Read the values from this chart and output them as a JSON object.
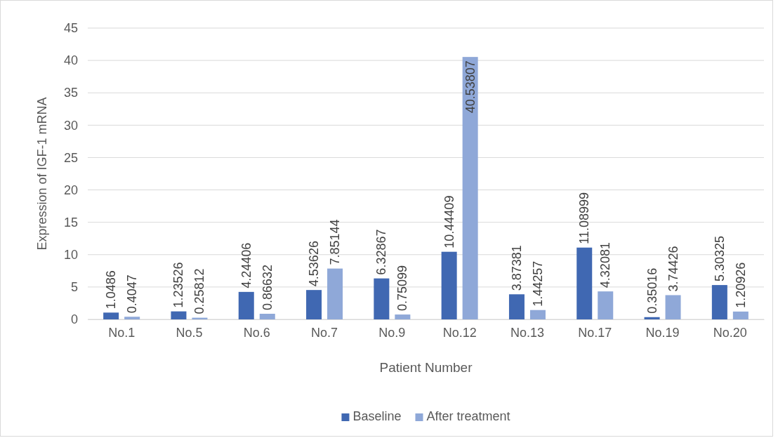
{
  "chart_data": {
    "type": "bar",
    "xlabel": "Patient Number",
    "ylabel": "Expression of IGF-1 mRNA",
    "categories": [
      "No.1",
      "No.5",
      "No.6",
      "No.7",
      "No.9",
      "No.12",
      "No.13",
      "No.17",
      "No.19",
      "No.20"
    ],
    "series": [
      {
        "name": "Baseline",
        "color": "#4068b2",
        "values": [
          1.0486,
          1.23526,
          4.24406,
          4.53626,
          6.32867,
          10.44409,
          3.87381,
          11.08999,
          0.35016,
          5.30325
        ]
      },
      {
        "name": "After treatment",
        "color": "#8fa8d8",
        "values": [
          0.4047,
          0.25812,
          0.86632,
          7.85144,
          0.75099,
          40.53807,
          1.44257,
          4.32081,
          3.74426,
          1.20926
        ]
      }
    ],
    "ylim": [
      0,
      45
    ],
    "yticks": [
      0,
      5,
      10,
      15,
      20,
      25,
      30,
      35,
      40,
      45
    ],
    "grid": "y",
    "legend": "bottom",
    "data_labels": true
  }
}
